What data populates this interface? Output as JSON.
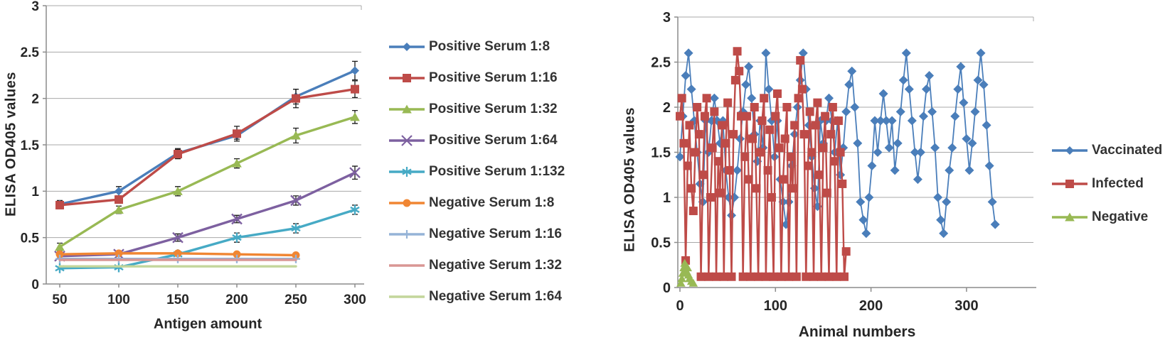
{
  "page": {
    "background": "#ffffff",
    "text_color": "#262626",
    "grid_color": "#a8a8a8",
    "axis_color": "#8c8c8c"
  },
  "chart_data": [
    {
      "type": "line",
      "title": "",
      "xlabel": "Antigen amount",
      "ylabel": "ELISA OD405 values",
      "x_categories": [
        50,
        100,
        150,
        200,
        250,
        300
      ],
      "ylim": [
        0,
        3
      ],
      "y_ticks": [
        0,
        0.5,
        1,
        1.5,
        2,
        2.5,
        3
      ],
      "grid": true,
      "legend_position": "right",
      "series": [
        {
          "name": "Positive Serum 1:8",
          "color": "#4a7eba",
          "marker": "diamond",
          "values": [
            0.86,
            1.0,
            1.41,
            1.6,
            2.02,
            2.3
          ],
          "errors": [
            0.04,
            0.05,
            0.05,
            0.04,
            0.08,
            0.1
          ]
        },
        {
          "name": "Positive Serum 1:16",
          "color": "#be4b48",
          "marker": "square",
          "values": [
            0.85,
            0.91,
            1.4,
            1.62,
            2.0,
            2.1
          ],
          "errors": [
            0.04,
            0.04,
            0.05,
            0.08,
            0.1,
            0.09
          ]
        },
        {
          "name": "Positive Serum 1:32",
          "color": "#98b954",
          "marker": "triangle",
          "values": [
            0.4,
            0.8,
            1.0,
            1.3,
            1.6,
            1.8
          ],
          "errors": [
            0.04,
            0.04,
            0.05,
            0.05,
            0.08,
            0.07
          ]
        },
        {
          "name": "Positive Serum 1:64",
          "color": "#7d60a0",
          "marker": "x",
          "values": [
            0.3,
            0.32,
            0.5,
            0.7,
            0.9,
            1.2
          ],
          "errors": [
            0,
            0,
            0.04,
            0.04,
            0.05,
            0.07
          ]
        },
        {
          "name": "Positive Serum 1:132",
          "color": "#46aac5",
          "marker": "asterisk",
          "values": [
            0.17,
            0.18,
            0.32,
            0.5,
            0.6,
            0.8
          ],
          "errors": [
            0,
            0,
            0,
            0.05,
            0.05,
            0.05
          ]
        },
        {
          "name": "Negative Serum 1:8",
          "color": "#f08633",
          "marker": "circle",
          "values": [
            0.32,
            0.33,
            0.33,
            0.32,
            0.31
          ]
        },
        {
          "name": "Negative Serum 1:16",
          "color": "#95b3d7",
          "marker": "plus",
          "values": [
            0.27,
            0.27,
            0.27,
            0.27,
            0.27
          ]
        },
        {
          "name": "Negative Serum 1:32",
          "color": "#d99694",
          "marker": "none",
          "values": [
            0.26,
            0.26,
            0.26,
            0.26,
            0.26
          ]
        },
        {
          "name": "Negative Serum 1:64",
          "color": "#c3d69b",
          "marker": "none",
          "values": [
            0.19,
            0.19,
            0.19,
            0.19,
            0.19
          ]
        }
      ]
    },
    {
      "type": "scatter-line",
      "title": "",
      "xlabel": "Animal numbers",
      "ylabel": "ELISA OD405 values",
      "xlim": [
        0,
        370
      ],
      "x_ticks": [
        0,
        100,
        200,
        300
      ],
      "ylim": [
        0,
        3
      ],
      "y_ticks": [
        0,
        0.5,
        1,
        1.5,
        2,
        2.5,
        3
      ],
      "grid": true,
      "legend_position": "right",
      "series": [
        {
          "name": "Vaccinated",
          "color": "#4a7eba",
          "marker": "diamond",
          "x_start": 0,
          "x_step": 3,
          "y": [
            1.45,
            1.9,
            2.35,
            2.6,
            2.2,
            1.85,
            1.5,
            1.15,
            0.95,
            1.85,
            1.5,
            1.85,
            2.1,
            1.85,
            1.6,
            1.85,
            1.3,
            1.0,
            0.8,
            1.0,
            1.3,
            1.65,
            1.95,
            2.25,
            2.45,
            2.1,
            1.7,
            1.4,
            1.85,
            1.55,
            2.6,
            2.2,
            1.85,
            1.45,
            1.85,
            1.2,
            0.95,
            0.7,
            0.95,
            1.35,
            1.7,
            2.0,
            2.3,
            2.6,
            2.2,
            1.8,
            1.45,
            1.1,
            0.9,
            1.85,
            1.6,
            1.85,
            2.1,
            1.85,
            1.5,
            1.85,
            1.25,
            1.55,
            1.95,
            2.25,
            2.4,
            2.0,
            1.6,
            0.95,
            0.75,
            0.6,
            1.0,
            1.35,
            1.85,
            1.5,
            1.85,
            2.15,
            1.85,
            1.55,
            1.85,
            1.3,
            1.6,
            1.95,
            2.3,
            2.6,
            2.2,
            1.85,
            1.5,
            1.2,
            1.5,
            1.9,
            2.2,
            2.35,
            1.95,
            1.55,
            1.0,
            0.75,
            0.6,
            0.95,
            1.3,
            1.55,
            1.9,
            2.2,
            2.45,
            2.05,
            1.65,
            1.3,
            1.6,
            1.95,
            2.3,
            2.6,
            2.25,
            1.8,
            1.35,
            0.95,
            0.7
          ]
        },
        {
          "name": "Infected",
          "color": "#be4b48",
          "marker": "square",
          "x_start": 0,
          "x_step": 2,
          "y": [
            1.9,
            2.1,
            1.6,
            0.3,
            1.35,
            1.8,
            1.1,
            0.85,
            1.5,
            2.0,
            1.7,
            0.12,
            1.25,
            1.9,
            2.1,
            0.12,
            1.0,
            1.55,
            1.95,
            0.12,
            1.4,
            1.05,
            1.8,
            0.12,
            1.6,
            2.05,
            1.3,
            0.12,
            1.7,
            2.3,
            2.62,
            2.4,
            1.9,
            0.12,
            1.45,
            1.9,
            1.2,
            0.12,
            1.65,
            2.0,
            1.1,
            0.12,
            1.5,
            1.85,
            2.1,
            0.12,
            1.3,
            1.75,
            1.0,
            0.12,
            1.9,
            2.15,
            1.55,
            0.12,
            1.2,
            1.65,
            2.0,
            0.12,
            1.45,
            1.1,
            1.8,
            0.12,
            2.1,
            2.52,
            2.2,
            1.7,
            0.12,
            1.35,
            1.95,
            1.5,
            0.12,
            1.8,
            2.05,
            1.25,
            0.12,
            1.55,
            1.9,
            1.05,
            0.12,
            1.7,
            2.0,
            1.4,
            0.12,
            1.85,
            1.5,
            1.15,
            0.12,
            0.4
          ]
        },
        {
          "name": "Negative",
          "color": "#98b954",
          "marker": "triangle",
          "x": [
            1,
            2,
            3,
            4,
            5,
            6,
            7,
            8,
            9,
            10,
            12,
            14
          ],
          "y": [
            0.05,
            0.1,
            0.16,
            0.22,
            0.27,
            0.24,
            0.18,
            0.22,
            0.14,
            0.1,
            0.07,
            0.05
          ]
        }
      ]
    }
  ]
}
